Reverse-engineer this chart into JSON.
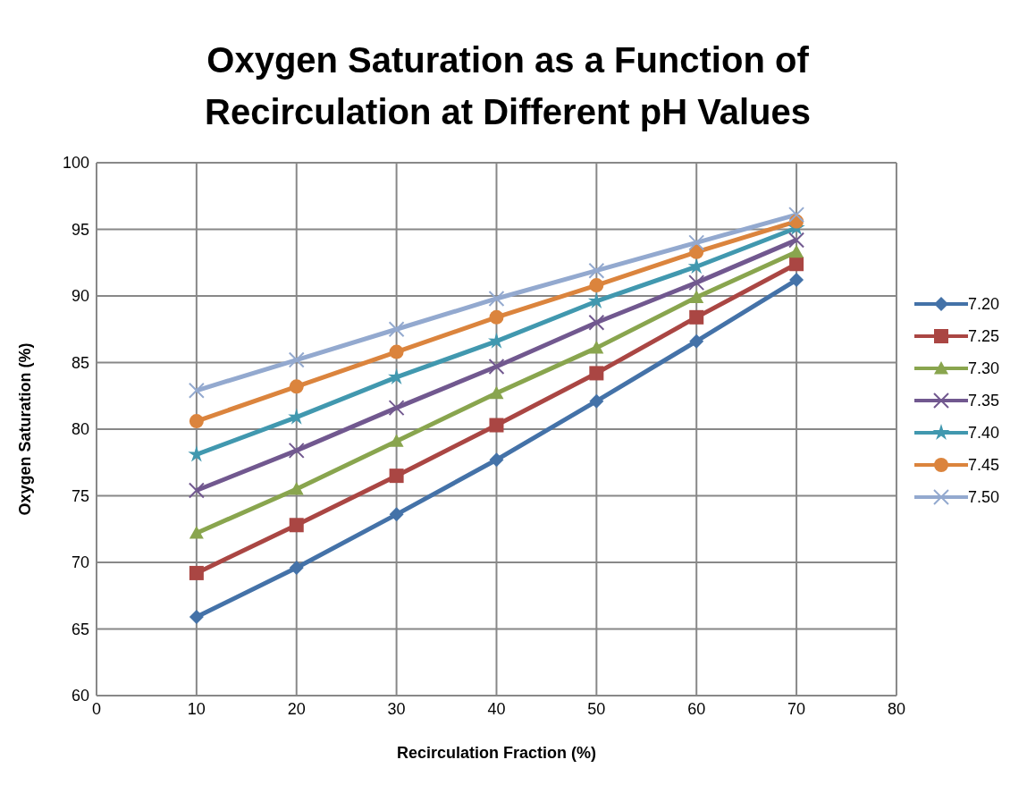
{
  "chart_data": {
    "type": "line",
    "title": "Oxygen Saturation as a Function of Recirculation at Different pH Values",
    "xlabel": "Recirculation Fraction (%)",
    "ylabel": "Oxygen Saturation (%)",
    "x": [
      10,
      20,
      30,
      40,
      50,
      60,
      70
    ],
    "xlim": [
      0,
      80
    ],
    "xticks": [
      0,
      10,
      20,
      30,
      40,
      50,
      60,
      70,
      80
    ],
    "ylim": [
      60,
      100
    ],
    "yticks": [
      60,
      65,
      70,
      75,
      80,
      85,
      90,
      95,
      100
    ],
    "grid": true,
    "legend": "right",
    "line_style": "solid",
    "series": [
      {
        "name": "7.20",
        "color": "#4472a8",
        "marker": "diamond",
        "values": [
          65.9,
          69.6,
          73.6,
          77.7,
          82.1,
          86.6,
          91.2
        ]
      },
      {
        "name": "7.25",
        "color": "#aa4643",
        "marker": "square",
        "values": [
          69.2,
          72.8,
          76.5,
          80.3,
          84.2,
          88.4,
          92.4
        ]
      },
      {
        "name": "7.30",
        "color": "#89a54e",
        "marker": "triangle",
        "values": [
          72.2,
          75.5,
          79.1,
          82.7,
          86.1,
          89.9,
          93.3
        ]
      },
      {
        "name": "7.35",
        "color": "#71588f",
        "marker": "cross",
        "values": [
          75.4,
          78.4,
          81.6,
          84.7,
          88.0,
          91.0,
          94.2
        ]
      },
      {
        "name": "7.40",
        "color": "#4198af",
        "marker": "star",
        "values": [
          78.1,
          80.9,
          83.9,
          86.6,
          89.6,
          92.2,
          95.1
        ]
      },
      {
        "name": "7.45",
        "color": "#db843d",
        "marker": "circle",
        "values": [
          80.6,
          83.2,
          85.8,
          88.4,
          90.8,
          93.3,
          95.6
        ]
      },
      {
        "name": "7.50",
        "color": "#93a9cf",
        "marker": "cross",
        "values": [
          82.9,
          85.2,
          87.5,
          89.8,
          91.9,
          94.0,
          96.1
        ]
      }
    ]
  }
}
